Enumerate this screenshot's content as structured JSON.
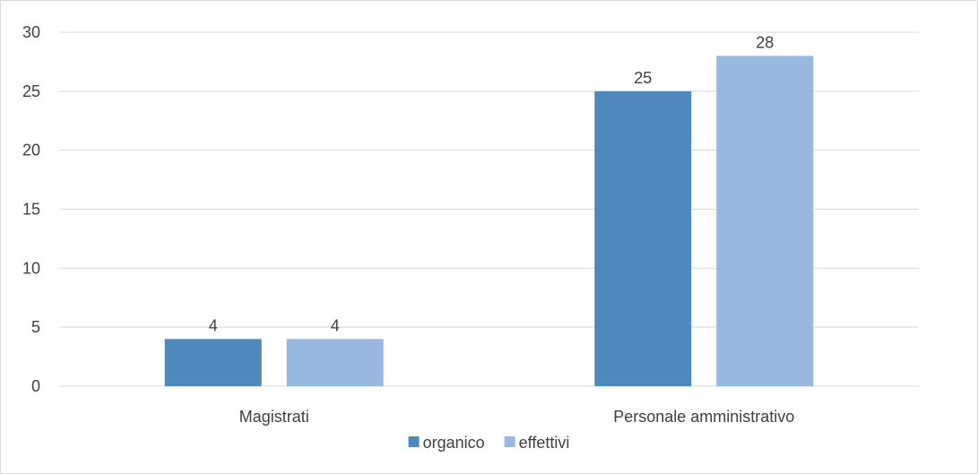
{
  "chart_data": {
    "type": "bar",
    "title": "",
    "xlabel": "",
    "ylabel": "",
    "categories": [
      "Magistrati",
      "Personale amministrativo"
    ],
    "series": [
      {
        "name": "organico",
        "values": [
          4,
          25
        ],
        "color": "#4f88bb"
      },
      {
        "name": "effettivi",
        "values": [
          4,
          28
        ],
        "color": "#98b8df"
      }
    ],
    "ylim": [
      0,
      30
    ],
    "yticks": [
      0,
      5,
      10,
      15,
      20,
      25,
      30
    ],
    "ytick_labels": [
      "0",
      "5",
      "10",
      "15",
      "20",
      "25",
      "30"
    ],
    "data_labels": true,
    "grid": true,
    "legend_position": "bottom",
    "colors": {
      "gridline": "#d9d9d9",
      "text": "#404040",
      "border": "#d9d9d9"
    }
  }
}
